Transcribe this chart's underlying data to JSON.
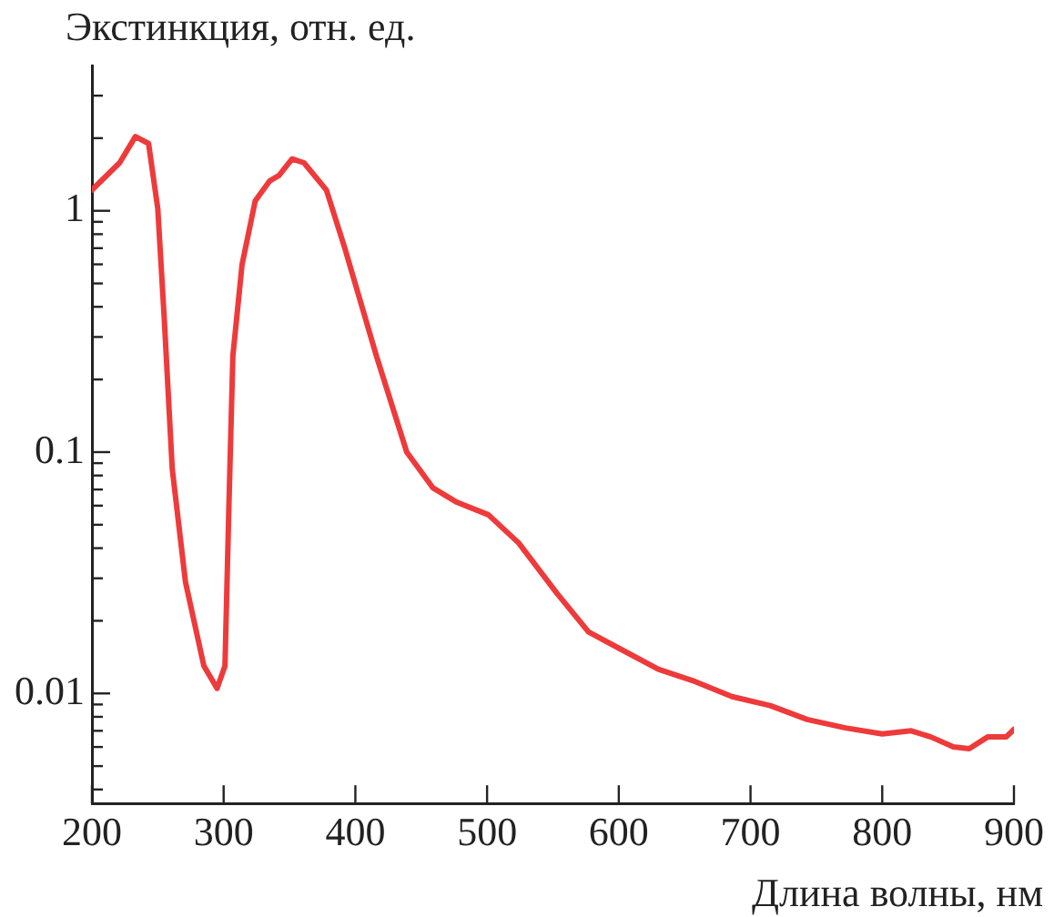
{
  "chart_data": {
    "type": "line",
    "xlabel": "Длина волны, нм",
    "ylabel": "Экстинкция, отн. ед.",
    "log": "y",
    "xlim": [
      200,
      900
    ],
    "xticks": [
      200,
      300,
      400,
      500,
      600,
      700,
      800,
      900
    ],
    "ylim": [
      0.0035,
      4
    ],
    "yticks": [
      {
        "value": 0.004,
        "label": null
      },
      {
        "value": 0.005,
        "label": null
      },
      {
        "value": 0.006,
        "label": null
      },
      {
        "value": 0.007,
        "label": null
      },
      {
        "value": 0.008,
        "label": null
      },
      {
        "value": 0.009,
        "label": null
      },
      0.01,
      {
        "value": 0.02,
        "label": null
      },
      {
        "value": 0.03,
        "label": null
      },
      {
        "value": 0.04,
        "label": null
      },
      {
        "value": 0.05,
        "label": null
      },
      {
        "value": 0.06,
        "label": null
      },
      {
        "value": 0.07,
        "label": null
      },
      {
        "value": 0.08,
        "label": null
      },
      {
        "value": 0.09,
        "label": null
      },
      0.1,
      {
        "value": 0.2,
        "label": null
      },
      {
        "value": 0.3,
        "label": null
      },
      {
        "value": 0.4,
        "label": null
      },
      {
        "value": 0.5,
        "label": null
      },
      {
        "value": 0.6,
        "label": null
      },
      {
        "value": 0.7,
        "label": null
      },
      {
        "value": 0.8,
        "label": null
      },
      {
        "value": 0.9,
        "label": null
      },
      1,
      {
        "value": 2,
        "label": null
      },
      {
        "value": 3,
        "label": null
      }
    ],
    "marker": "none",
    "line_style": "solid",
    "series": [
      {
        "color": "#ee3a3a",
        "x": [
          200,
          221,
          233,
          243,
          250,
          255,
          261,
          271,
          285,
          295,
          301,
          304,
          307,
          314,
          324,
          335,
          342,
          352,
          361,
          378,
          392,
          416,
          439,
          459,
          477,
          501,
          524,
          553,
          577,
          601,
          630,
          658,
          686,
          715,
          743,
          772,
          800,
          822,
          837,
          854,
          866,
          880,
          894,
          900
        ],
        "values": [
          1.22,
          1.58,
          2.03,
          1.9,
          1.02,
          0.35,
          0.085,
          0.029,
          0.013,
          0.0105,
          0.013,
          0.06,
          0.25,
          0.6,
          1.1,
          1.33,
          1.4,
          1.64,
          1.58,
          1.22,
          0.7,
          0.25,
          0.1,
          0.071,
          0.062,
          0.055,
          0.042,
          0.026,
          0.018,
          0.0153,
          0.0126,
          0.0112,
          0.0097,
          0.0089,
          0.0078,
          0.0072,
          0.0068,
          0.007,
          0.0066,
          0.006,
          0.0059,
          0.0066,
          0.0066,
          0.0071
        ]
      }
    ]
  }
}
